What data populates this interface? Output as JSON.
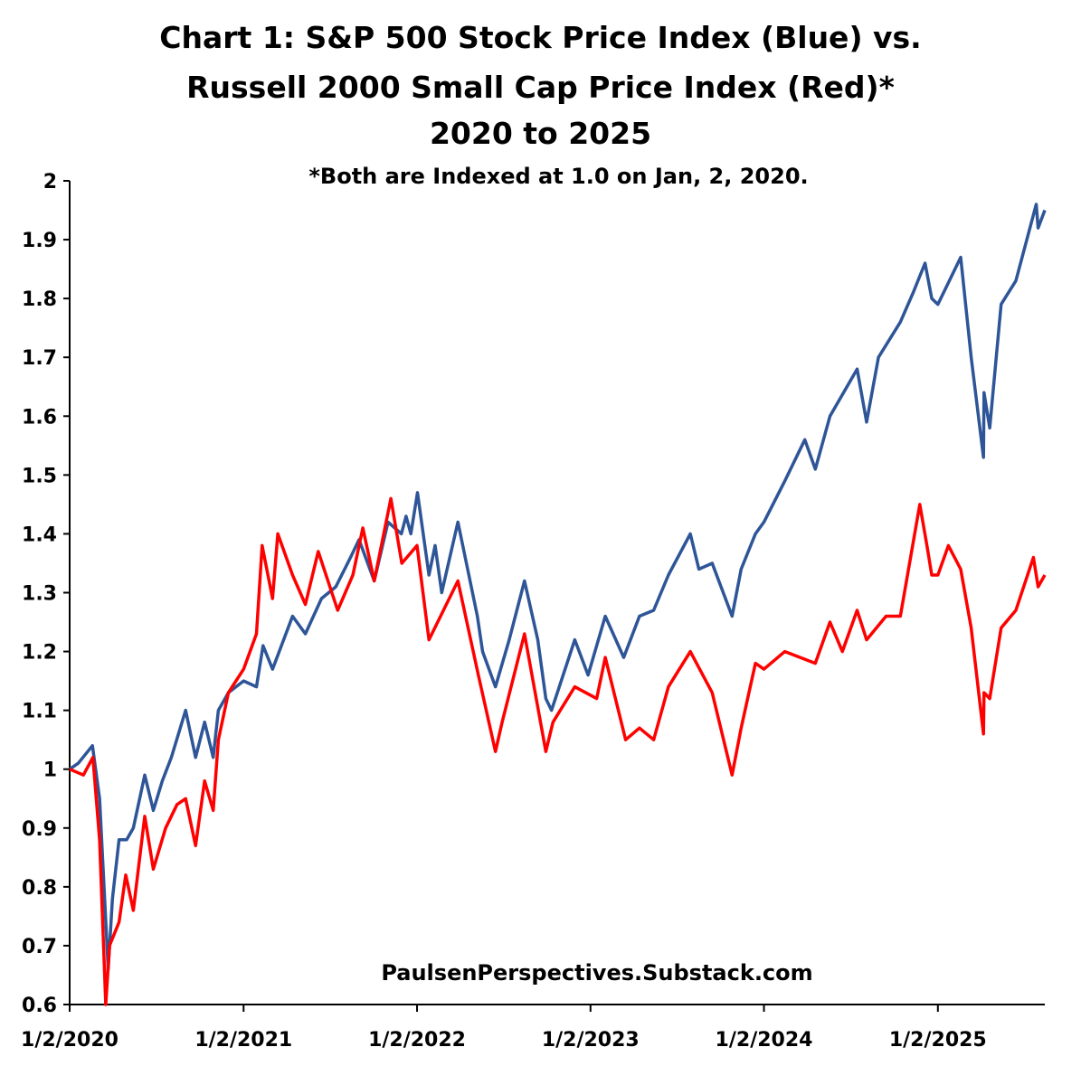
{
  "chart_data": {
    "type": "line",
    "title_lines": [
      "Chart 1: S&P 500 Stock Price Index (Blue) vs.",
      "Russell 2000 Small Cap Price Index (Red)*",
      "2020 to 2025"
    ],
    "subtitle": "*Both are Indexed at 1.0 on Jan, 2, 2020.",
    "annotation": "PaulsenPerspectives.Substack.com",
    "xlabel": "",
    "ylabel": "",
    "x_ticks": [
      "1/2/2020",
      "1/2/2021",
      "1/2/2022",
      "1/2/2023",
      "1/2/2024",
      "1/2/2025"
    ],
    "y_ticks": [
      "0.6",
      "0.7",
      "0.8",
      "0.9",
      "1",
      "1.1",
      "1.2",
      "1.3",
      "1.4",
      "1.5",
      "1.6",
      "1.7",
      "1.8",
      "1.9",
      "2"
    ],
    "xlim": [
      "2020-01-02",
      "2025-08-15"
    ],
    "ylim": [
      0.6,
      2.0
    ],
    "grid": false,
    "legend": "none",
    "series": [
      {
        "color": "#2E5597",
        "points": [
          [
            "2020-01-02",
            1.0
          ],
          [
            "2020-01-20",
            1.01
          ],
          [
            "2020-02-19",
            1.04
          ],
          [
            "2020-03-05",
            0.95
          ],
          [
            "2020-03-23",
            0.66
          ],
          [
            "2020-04-01",
            0.78
          ],
          [
            "2020-04-15",
            0.88
          ],
          [
            "2020-05-01",
            0.88
          ],
          [
            "2020-05-15",
            0.9
          ],
          [
            "2020-06-08",
            0.99
          ],
          [
            "2020-06-26",
            0.93
          ],
          [
            "2020-07-15",
            0.98
          ],
          [
            "2020-08-03",
            1.02
          ],
          [
            "2020-09-02",
            1.1
          ],
          [
            "2020-09-23",
            1.02
          ],
          [
            "2020-10-12",
            1.08
          ],
          [
            "2020-10-30",
            1.02
          ],
          [
            "2020-11-10",
            1.1
          ],
          [
            "2020-12-01",
            1.13
          ],
          [
            "2021-01-02",
            1.15
          ],
          [
            "2021-01-29",
            1.14
          ],
          [
            "2021-02-12",
            1.21
          ],
          [
            "2021-03-04",
            1.17
          ],
          [
            "2021-04-15",
            1.26
          ],
          [
            "2021-05-12",
            1.23
          ],
          [
            "2021-06-15",
            1.29
          ],
          [
            "2021-07-15",
            1.31
          ],
          [
            "2021-08-15",
            1.36
          ],
          [
            "2021-09-02",
            1.39
          ],
          [
            "2021-10-04",
            1.32
          ],
          [
            "2021-11-02",
            1.42
          ],
          [
            "2021-11-30",
            1.4
          ],
          [
            "2021-12-10",
            1.43
          ],
          [
            "2021-12-20",
            1.4
          ],
          [
            "2022-01-03",
            1.47
          ],
          [
            "2022-01-27",
            1.33
          ],
          [
            "2022-02-09",
            1.38
          ],
          [
            "2022-02-23",
            1.3
          ],
          [
            "2022-03-29",
            1.42
          ],
          [
            "2022-05-09",
            1.26
          ],
          [
            "2022-05-20",
            1.2
          ],
          [
            "2022-06-16",
            1.14
          ],
          [
            "2022-07-15",
            1.22
          ],
          [
            "2022-08-16",
            1.32
          ],
          [
            "2022-09-13",
            1.22
          ],
          [
            "2022-09-30",
            1.12
          ],
          [
            "2022-10-12",
            1.1
          ],
          [
            "2022-11-30",
            1.22
          ],
          [
            "2022-12-28",
            1.16
          ],
          [
            "2023-01-15",
            1.21
          ],
          [
            "2023-02-02",
            1.26
          ],
          [
            "2023-03-13",
            1.19
          ],
          [
            "2023-04-15",
            1.26
          ],
          [
            "2023-05-15",
            1.27
          ],
          [
            "2023-06-15",
            1.33
          ],
          [
            "2023-07-31",
            1.4
          ],
          [
            "2023-08-18",
            1.34
          ],
          [
            "2023-09-15",
            1.35
          ],
          [
            "2023-10-27",
            1.26
          ],
          [
            "2023-11-15",
            1.34
          ],
          [
            "2023-12-15",
            1.4
          ],
          [
            "2024-01-02",
            1.42
          ],
          [
            "2024-02-15",
            1.49
          ],
          [
            "2024-03-28",
            1.56
          ],
          [
            "2024-04-19",
            1.51
          ],
          [
            "2024-05-20",
            1.6
          ],
          [
            "2024-07-16",
            1.68
          ],
          [
            "2024-08-05",
            1.59
          ],
          [
            "2024-08-30",
            1.7
          ],
          [
            "2024-10-15",
            1.76
          ],
          [
            "2024-11-11",
            1.81
          ],
          [
            "2024-12-06",
            1.86
          ],
          [
            "2024-12-20",
            1.8
          ],
          [
            "2025-01-02",
            1.79
          ],
          [
            "2025-02-19",
            1.87
          ],
          [
            "2025-03-13",
            1.7
          ],
          [
            "2025-04-08",
            1.53
          ],
          [
            "2025-04-09",
            1.64
          ],
          [
            "2025-04-21",
            1.58
          ],
          [
            "2025-05-15",
            1.79
          ],
          [
            "2025-06-15",
            1.83
          ],
          [
            "2025-07-28",
            1.96
          ],
          [
            "2025-08-01",
            1.92
          ],
          [
            "2025-08-15",
            1.95
          ]
        ]
      },
      {
        "color": "#FF0000",
        "points": [
          [
            "2020-01-02",
            1.0
          ],
          [
            "2020-01-31",
            0.99
          ],
          [
            "2020-02-20",
            1.02
          ],
          [
            "2020-03-05",
            0.88
          ],
          [
            "2020-03-18",
            0.6
          ],
          [
            "2020-03-26",
            0.7
          ],
          [
            "2020-04-15",
            0.74
          ],
          [
            "2020-04-29",
            0.82
          ],
          [
            "2020-05-15",
            0.76
          ],
          [
            "2020-06-08",
            0.92
          ],
          [
            "2020-06-26",
            0.83
          ],
          [
            "2020-07-22",
            0.9
          ],
          [
            "2020-08-15",
            0.94
          ],
          [
            "2020-09-02",
            0.95
          ],
          [
            "2020-09-23",
            0.87
          ],
          [
            "2020-10-12",
            0.98
          ],
          [
            "2020-10-30",
            0.93
          ],
          [
            "2020-11-10",
            1.05
          ],
          [
            "2020-12-01",
            1.13
          ],
          [
            "2021-01-02",
            1.17
          ],
          [
            "2021-01-29",
            1.23
          ],
          [
            "2021-02-10",
            1.38
          ],
          [
            "2021-03-04",
            1.29
          ],
          [
            "2021-03-15",
            1.4
          ],
          [
            "2021-04-15",
            1.33
          ],
          [
            "2021-05-12",
            1.28
          ],
          [
            "2021-06-08",
            1.37
          ],
          [
            "2021-07-19",
            1.27
          ],
          [
            "2021-08-20",
            1.33
          ],
          [
            "2021-09-10",
            1.41
          ],
          [
            "2021-10-04",
            1.32
          ],
          [
            "2021-11-08",
            1.46
          ],
          [
            "2021-12-01",
            1.35
          ],
          [
            "2022-01-02",
            1.38
          ],
          [
            "2022-01-27",
            1.22
          ],
          [
            "2022-03-29",
            1.32
          ],
          [
            "2022-05-11",
            1.16
          ],
          [
            "2022-06-16",
            1.03
          ],
          [
            "2022-06-30",
            1.08
          ],
          [
            "2022-08-16",
            1.23
          ],
          [
            "2022-09-30",
            1.03
          ],
          [
            "2022-10-15",
            1.08
          ],
          [
            "2022-11-30",
            1.14
          ],
          [
            "2023-01-15",
            1.12
          ],
          [
            "2023-02-02",
            1.19
          ],
          [
            "2023-03-17",
            1.05
          ],
          [
            "2023-04-15",
            1.07
          ],
          [
            "2023-05-15",
            1.05
          ],
          [
            "2023-06-15",
            1.14
          ],
          [
            "2023-07-31",
            1.2
          ],
          [
            "2023-09-15",
            1.13
          ],
          [
            "2023-10-27",
            0.99
          ],
          [
            "2023-11-15",
            1.07
          ],
          [
            "2023-12-15",
            1.18
          ],
          [
            "2024-01-02",
            1.17
          ],
          [
            "2024-02-15",
            1.2
          ],
          [
            "2024-04-19",
            1.18
          ],
          [
            "2024-05-20",
            1.25
          ],
          [
            "2024-06-15",
            1.2
          ],
          [
            "2024-07-16",
            1.27
          ],
          [
            "2024-08-05",
            1.22
          ],
          [
            "2024-09-15",
            1.26
          ],
          [
            "2024-10-15",
            1.26
          ],
          [
            "2024-11-25",
            1.45
          ],
          [
            "2024-12-10",
            1.38
          ],
          [
            "2024-12-20",
            1.33
          ],
          [
            "2025-01-02",
            1.33
          ],
          [
            "2025-01-24",
            1.38
          ],
          [
            "2025-02-19",
            1.34
          ],
          [
            "2025-03-13",
            1.24
          ],
          [
            "2025-04-08",
            1.06
          ],
          [
            "2025-04-09",
            1.13
          ],
          [
            "2025-04-21",
            1.12
          ],
          [
            "2025-05-15",
            1.24
          ],
          [
            "2025-06-15",
            1.27
          ],
          [
            "2025-07-22",
            1.36
          ],
          [
            "2025-08-01",
            1.31
          ],
          [
            "2025-08-15",
            1.33
          ]
        ]
      }
    ]
  }
}
